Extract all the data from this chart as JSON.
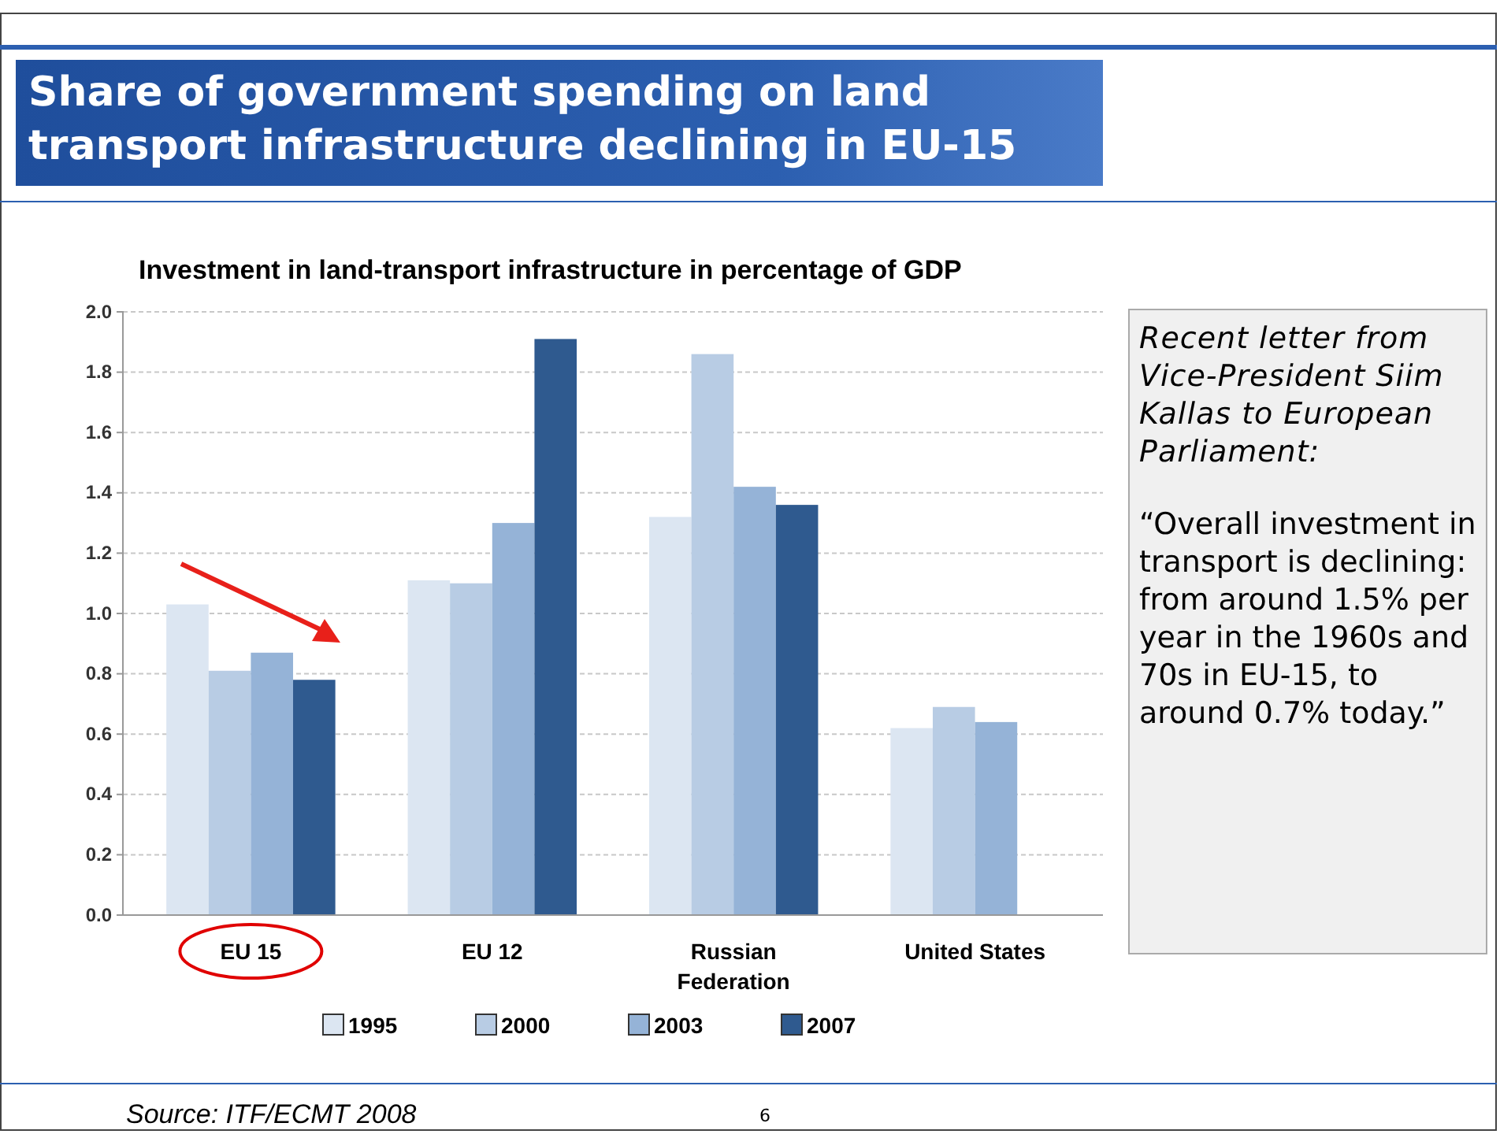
{
  "chart_data": {
    "type": "bar",
    "title": "Share of government spending on land transport infrastructure declining in EU-15",
    "subtitle": "Investment in land-transport infrastructure in percentage of GDP",
    "categories": [
      "EU 15",
      "EU 12",
      "Russian Federation",
      "United States"
    ],
    "series": [
      {
        "name": "1995",
        "color": "#dce6f2",
        "values": [
          1.03,
          1.11,
          1.32,
          0.62
        ]
      },
      {
        "name": "2000",
        "color": "#b8cce4",
        "values": [
          0.81,
          1.1,
          1.86,
          0.69
        ]
      },
      {
        "name": "2003",
        "color": "#95b3d7",
        "values": [
          0.87,
          1.3,
          1.42,
          0.64
        ]
      },
      {
        "name": "2007",
        "color": "#2f5a8f",
        "values": [
          0.78,
          1.91,
          1.36,
          null
        ]
      }
    ],
    "ylim": [
      0,
      2.0
    ],
    "yticks": [
      {
        "value": 0,
        "label": "0.0"
      },
      {
        "value": 0.2,
        "label": "0.2"
      },
      {
        "value": 0.4,
        "label": "0.4"
      },
      {
        "value": 0.6,
        "label": "0.6"
      },
      {
        "value": 0.8,
        "label": "0.8"
      },
      {
        "value": 1.0,
        "label": "1.0"
      },
      {
        "value": 1.2,
        "label": "1.2"
      },
      {
        "value": 1.4,
        "label": "1.4"
      },
      {
        "value": 1.6,
        "label": "1.6"
      },
      {
        "value": 1.8,
        "label": "1.8"
      },
      {
        "value": 2.0,
        "label": "2.0"
      }
    ],
    "grid": "y",
    "legend": "bottom",
    "annotations": [
      "Recent letter from Vice-President Siim Kallas to European Parliament:",
      "“Overall investment in transport is declining: from around 1.5% per year in the 1960s and 70s in EU-15, to around 0.7% today.”",
      "Source: ITF/ECMT 2008",
      "6"
    ]
  }
}
